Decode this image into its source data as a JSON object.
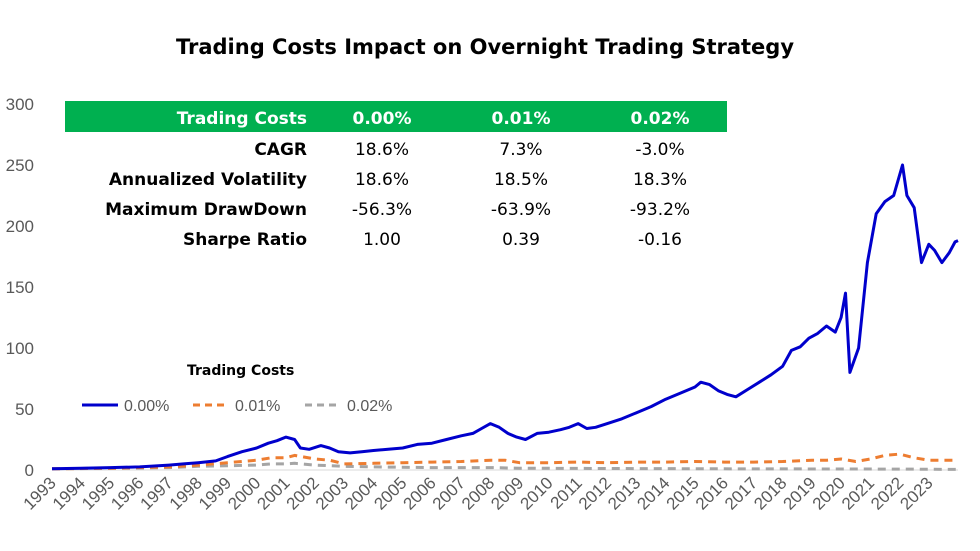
{
  "chart_data": {
    "type": "line",
    "title": "Trading Costs Impact on Overnight Trading Strategy",
    "xlabel": "",
    "ylabel": "",
    "ylim": [
      0,
      300
    ],
    "yticks": [
      "0",
      "50",
      "100",
      "150",
      "200",
      "250",
      "300"
    ],
    "xlim": [
      1993,
      2024
    ],
    "xticks": [
      "1993",
      "1994",
      "1995",
      "1996",
      "1997",
      "1998",
      "1999",
      "2000",
      "2001",
      "2002",
      "2003",
      "2004",
      "2005",
      "2006",
      "2007",
      "2008",
      "2009",
      "2010",
      "2011",
      "2012",
      "2013",
      "2014",
      "2015",
      "2016",
      "2017",
      "2018",
      "2019",
      "2020",
      "2021",
      "2022",
      "2023"
    ],
    "legend_title": "Trading Costs",
    "series": [
      {
        "name": "0.00%",
        "color": "#0000CC",
        "style": "solid",
        "x": [
          1993,
          1994,
          1995,
          1996,
          1997,
          1997.5,
          1998,
          1998.6,
          1999,
          1999.5,
          2000,
          2000.4,
          2000.7,
          2001.0,
          2001.3,
          2001.5,
          2001.8,
          2002.2,
          2002.5,
          2002.8,
          2003.2,
          2003.6,
          2004,
          2004.5,
          2005,
          2005.5,
          2006,
          2006.5,
          2007,
          2007.4,
          2007.7,
          2008,
          2008.3,
          2008.6,
          2008.9,
          2009.2,
          2009.6,
          2010,
          2010.4,
          2010.7,
          2011,
          2011.3,
          2011.6,
          2012,
          2012.5,
          2013,
          2013.5,
          2014,
          2014.5,
          2015,
          2015.2,
          2015.5,
          2015.8,
          2016.1,
          2016.4,
          2016.8,
          2017.2,
          2017.6,
          2018,
          2018.3,
          2018.6,
          2018.9,
          2019.2,
          2019.5,
          2019.8,
          2020.0,
          2020.15,
          2020.3,
          2020.6,
          2020.9,
          2021.2,
          2021.5,
          2021.8,
          2022.1,
          2022.25,
          2022.5,
          2022.75,
          2023.0,
          2023.2,
          2023.45,
          2023.7,
          2023.9,
          2024
        ],
        "values": [
          1,
          1.5,
          2,
          2.5,
          4,
          5,
          6,
          7.5,
          11,
          15,
          18,
          22,
          24,
          27,
          25,
          18,
          17,
          20,
          18,
          15,
          14,
          15,
          16,
          17,
          18,
          21,
          22,
          25,
          28,
          30,
          34,
          38,
          35,
          30,
          27,
          25,
          30,
          31,
          33,
          35,
          38,
          34,
          35,
          38,
          42,
          47,
          52,
          58,
          63,
          68,
          72,
          70,
          65,
          62,
          60,
          66,
          72,
          78,
          85,
          98,
          101,
          108,
          112,
          118,
          113,
          125,
          145,
          80,
          100,
          170,
          210,
          220,
          225,
          250,
          225,
          215,
          170,
          185,
          180,
          170,
          178,
          187,
          188
        ]
      },
      {
        "name": "0.01%",
        "color": "#ED7D31",
        "style": "dashed",
        "x": [
          1993,
          1995,
          1997,
          1998,
          1999,
          2000,
          2000.5,
          2001,
          2001.3,
          2002,
          2002.5,
          2003,
          2004,
          2005,
          2006,
          2007,
          2008,
          2008.5,
          2009,
          2010,
          2011,
          2012,
          2013,
          2014,
          2015,
          2016,
          2017,
          2018,
          2019,
          2019.5,
          2020,
          2020.5,
          2021,
          2021.5,
          2022,
          2022.5,
          2023,
          2024
        ],
        "values": [
          1,
          1.5,
          2.5,
          4,
          6,
          8,
          10,
          10,
          12,
          9,
          8,
          5,
          5.5,
          6,
          6.5,
          7,
          8,
          8,
          6,
          6,
          6.5,
          6,
          6.5,
          6.5,
          7,
          6.5,
          6.5,
          7,
          8,
          8,
          9,
          7,
          9,
          12,
          13,
          10,
          8,
          8
        ]
      },
      {
        "name": "0.02%",
        "color": "#A5A5A5",
        "style": "dashed",
        "x": [
          1993,
          1995,
          1997,
          1998,
          1999,
          2000,
          2000.5,
          2001,
          2001.3,
          2002,
          2003,
          2004,
          2006,
          2008,
          2009,
          2012,
          2016,
          2020,
          2022,
          2024
        ],
        "values": [
          1,
          1.3,
          2,
          3,
          3.5,
          4,
          5,
          5,
          5.5,
          4,
          3,
          2.5,
          2,
          2,
          1.5,
          1.2,
          1,
          0.8,
          0.7,
          0.5
        ]
      }
    ],
    "table": {
      "header_label": "Trading Costs",
      "columns": [
        "0.00%",
        "0.01%",
        "0.02%"
      ],
      "rows": [
        {
          "label": "CAGR",
          "values": [
            "18.6%",
            "7.3%",
            "-3.0%"
          ]
        },
        {
          "label": "Annualized Volatility",
          "values": [
            "18.6%",
            "18.5%",
            "18.3%"
          ]
        },
        {
          "label": "Maximum DrawDown",
          "values": [
            "-56.3%",
            "-63.9%",
            "-93.2%"
          ]
        },
        {
          "label": "Sharpe Ratio",
          "values": [
            "1.00",
            "0.39",
            "-0.16"
          ]
        }
      ],
      "header_color": "#00B050"
    }
  }
}
